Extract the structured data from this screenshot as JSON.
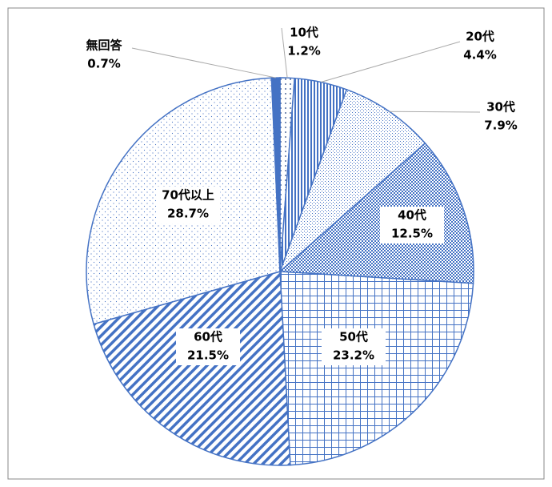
{
  "chart_data": {
    "type": "pie",
    "categories": [
      "10代",
      "20代",
      "30代",
      "40代",
      "50代",
      "60代",
      "70代以上",
      "無回答"
    ],
    "values": [
      1.2,
      4.4,
      7.9,
      12.5,
      23.2,
      21.5,
      28.7,
      0.7
    ],
    "value_labels": [
      "1.2%",
      "4.4%",
      "7.9%",
      "12.5%",
      "23.2%",
      "21.5%",
      "28.7%",
      "0.7%"
    ],
    "color": "#4472c4"
  }
}
